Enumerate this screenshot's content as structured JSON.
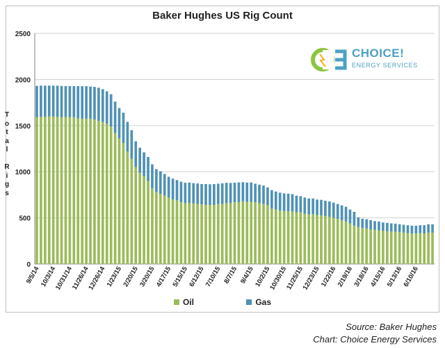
{
  "chart_data": {
    "type": "bar",
    "stacked": true,
    "title": "Baker Hughes US Rig Count",
    "ylabel": "Total Rigs",
    "xlabel": "",
    "ylim": [
      0,
      2500
    ],
    "yticks": [
      0,
      500,
      1000,
      1500,
      2000,
      2500
    ],
    "grid": true,
    "legend_position": "bottom",
    "colors": {
      "Oil": "#9bbb59",
      "Gas": "#4f91b5"
    },
    "x_tick_labels": [
      "9/5/14",
      "10/3/14",
      "10/31/14",
      "11/26/14",
      "12/26/14",
      "1/23/15",
      "2/20/15",
      "3/20/15",
      "4/17/15",
      "5/15/15",
      "6/12/15",
      "7/10/15",
      "8/7/15",
      "9/4/15",
      "10/2/15",
      "10/30/15",
      "11/25/15",
      "12/23/15",
      "1/22/16",
      "2/19/16",
      "3/18/16",
      "4/15/16",
      "5/13/16",
      "6/10/16"
    ],
    "series": [
      {
        "name": "Oil",
        "values": [
          1590,
          1595,
          1596,
          1598,
          1600,
          1595,
          1590,
          1593,
          1590,
          1590,
          1578,
          1575,
          1575,
          1573,
          1565,
          1550,
          1540,
          1520,
          1490,
          1420,
          1360,
          1310,
          1220,
          1140,
          1050,
          990,
          950,
          900,
          820,
          780,
          760,
          740,
          720,
          700,
          690,
          670,
          660,
          660,
          656,
          650,
          646,
          640,
          640,
          640,
          650,
          650,
          660,
          660,
          670,
          670,
          680,
          672,
          674,
          670,
          660,
          650,
          640,
          600,
          590,
          578,
          575,
          572,
          570,
          560,
          560,
          545,
          538,
          540,
          530,
          525,
          520,
          512,
          500,
          490,
          475,
          460,
          440,
          415,
          400,
          390,
          385,
          375,
          370,
          365,
          360,
          355,
          352,
          350,
          345,
          340,
          335,
          330,
          330,
          335,
          330,
          340,
          340
        ]
      },
      {
        "name": "Gas",
        "values": [
          340,
          338,
          337,
          335,
          333,
          338,
          340,
          335,
          338,
          338,
          350,
          352,
          352,
          350,
          355,
          360,
          355,
          352,
          350,
          340,
          330,
          330,
          320,
          310,
          280,
          270,
          260,
          260,
          260,
          248,
          245,
          235,
          225,
          225,
          220,
          222,
          220,
          222,
          220,
          222,
          220,
          226,
          224,
          226,
          220,
          224,
          220,
          218,
          211,
          214,
          206,
          210,
          210,
          200,
          200,
          200,
          190,
          200,
          195,
          195,
          190,
          190,
          187,
          180,
          175,
          175,
          172,
          170,
          168,
          170,
          165,
          165,
          165,
          160,
          160,
          160,
          150,
          150,
          105,
          100,
          100,
          100,
          95,
          95,
          90,
          90,
          88,
          87,
          86,
          85,
          85,
          85,
          85,
          85,
          90,
          90,
          90
        ]
      }
    ]
  },
  "logo": {
    "name": "CHOICE!",
    "tagline": "ENERGY SERVICES"
  },
  "source": {
    "line1": "Source: Baker Hughes",
    "line2": "Chart: Choice Energy Services"
  }
}
